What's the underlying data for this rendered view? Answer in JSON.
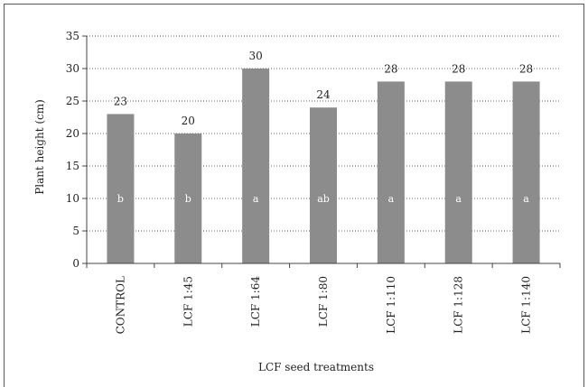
{
  "chart_data": {
    "type": "bar",
    "categories": [
      "CONTROL",
      "LCF 1:45",
      "LCF 1:64",
      "LCF 1:80",
      "LCF 1:110",
      "LCF 1:128",
      "LCF 1:140"
    ],
    "values": [
      23,
      20,
      30,
      24,
      28,
      28,
      28
    ],
    "data_labels": [
      "23",
      "20",
      "30",
      "24",
      "28",
      "28",
      "28"
    ],
    "significance_letters": [
      "b",
      "b",
      "a",
      "ab",
      "a",
      "a",
      "a"
    ],
    "title": "",
    "xlabel": "LCF seed treatments",
    "ylabel": "Plant height (cm)",
    "ylim": [
      0,
      35
    ],
    "yticks": [
      0,
      5,
      10,
      15,
      20,
      25,
      30,
      35
    ],
    "grid": true,
    "legend": "none",
    "bar_color": "#8c8c8c",
    "gridline_style": "dotted"
  }
}
